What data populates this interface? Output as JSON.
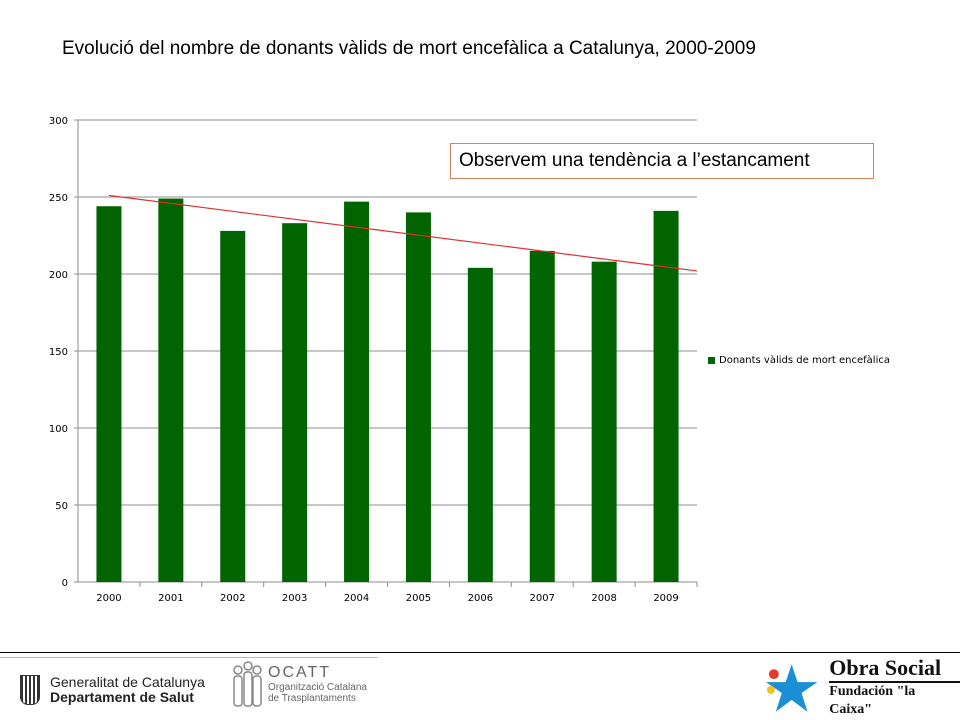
{
  "chart_data": {
    "type": "bar",
    "title": "Evolució del nombre de donants vàlids de mort encefàlica a Catalunya, 2000-2009",
    "categories": [
      "2000",
      "2001",
      "2002",
      "2003",
      "2004",
      "2005",
      "2006",
      "2007",
      "2008",
      "2009"
    ],
    "series": [
      {
        "name": "Donants vàlids de mort encefàlica",
        "values": [
          244,
          249,
          228,
          233,
          247,
          240,
          204,
          215,
          208,
          241
        ],
        "color": "#006400"
      }
    ],
    "trendline": {
      "start": 251,
      "end": 202,
      "color": "#e03030"
    },
    "yticks": [
      "0",
      "50",
      "100",
      "150",
      "200",
      "250",
      "300"
    ],
    "ylim": [
      0,
      300
    ],
    "grid": true,
    "legend_position": "right",
    "annotation": "Observem una tendència a l’estancament"
  },
  "footer": {
    "generalitat_line1": "Generalitat de Catalunya",
    "generalitat_line2": "Departament de Salut",
    "ocatt_name": "OCATT",
    "ocatt_line1": "Organització Catalana",
    "ocatt_line2": "de Trasplantaments",
    "obra_social": "Obra Social",
    "fundacion": "Fundación \"la Caixa\""
  }
}
